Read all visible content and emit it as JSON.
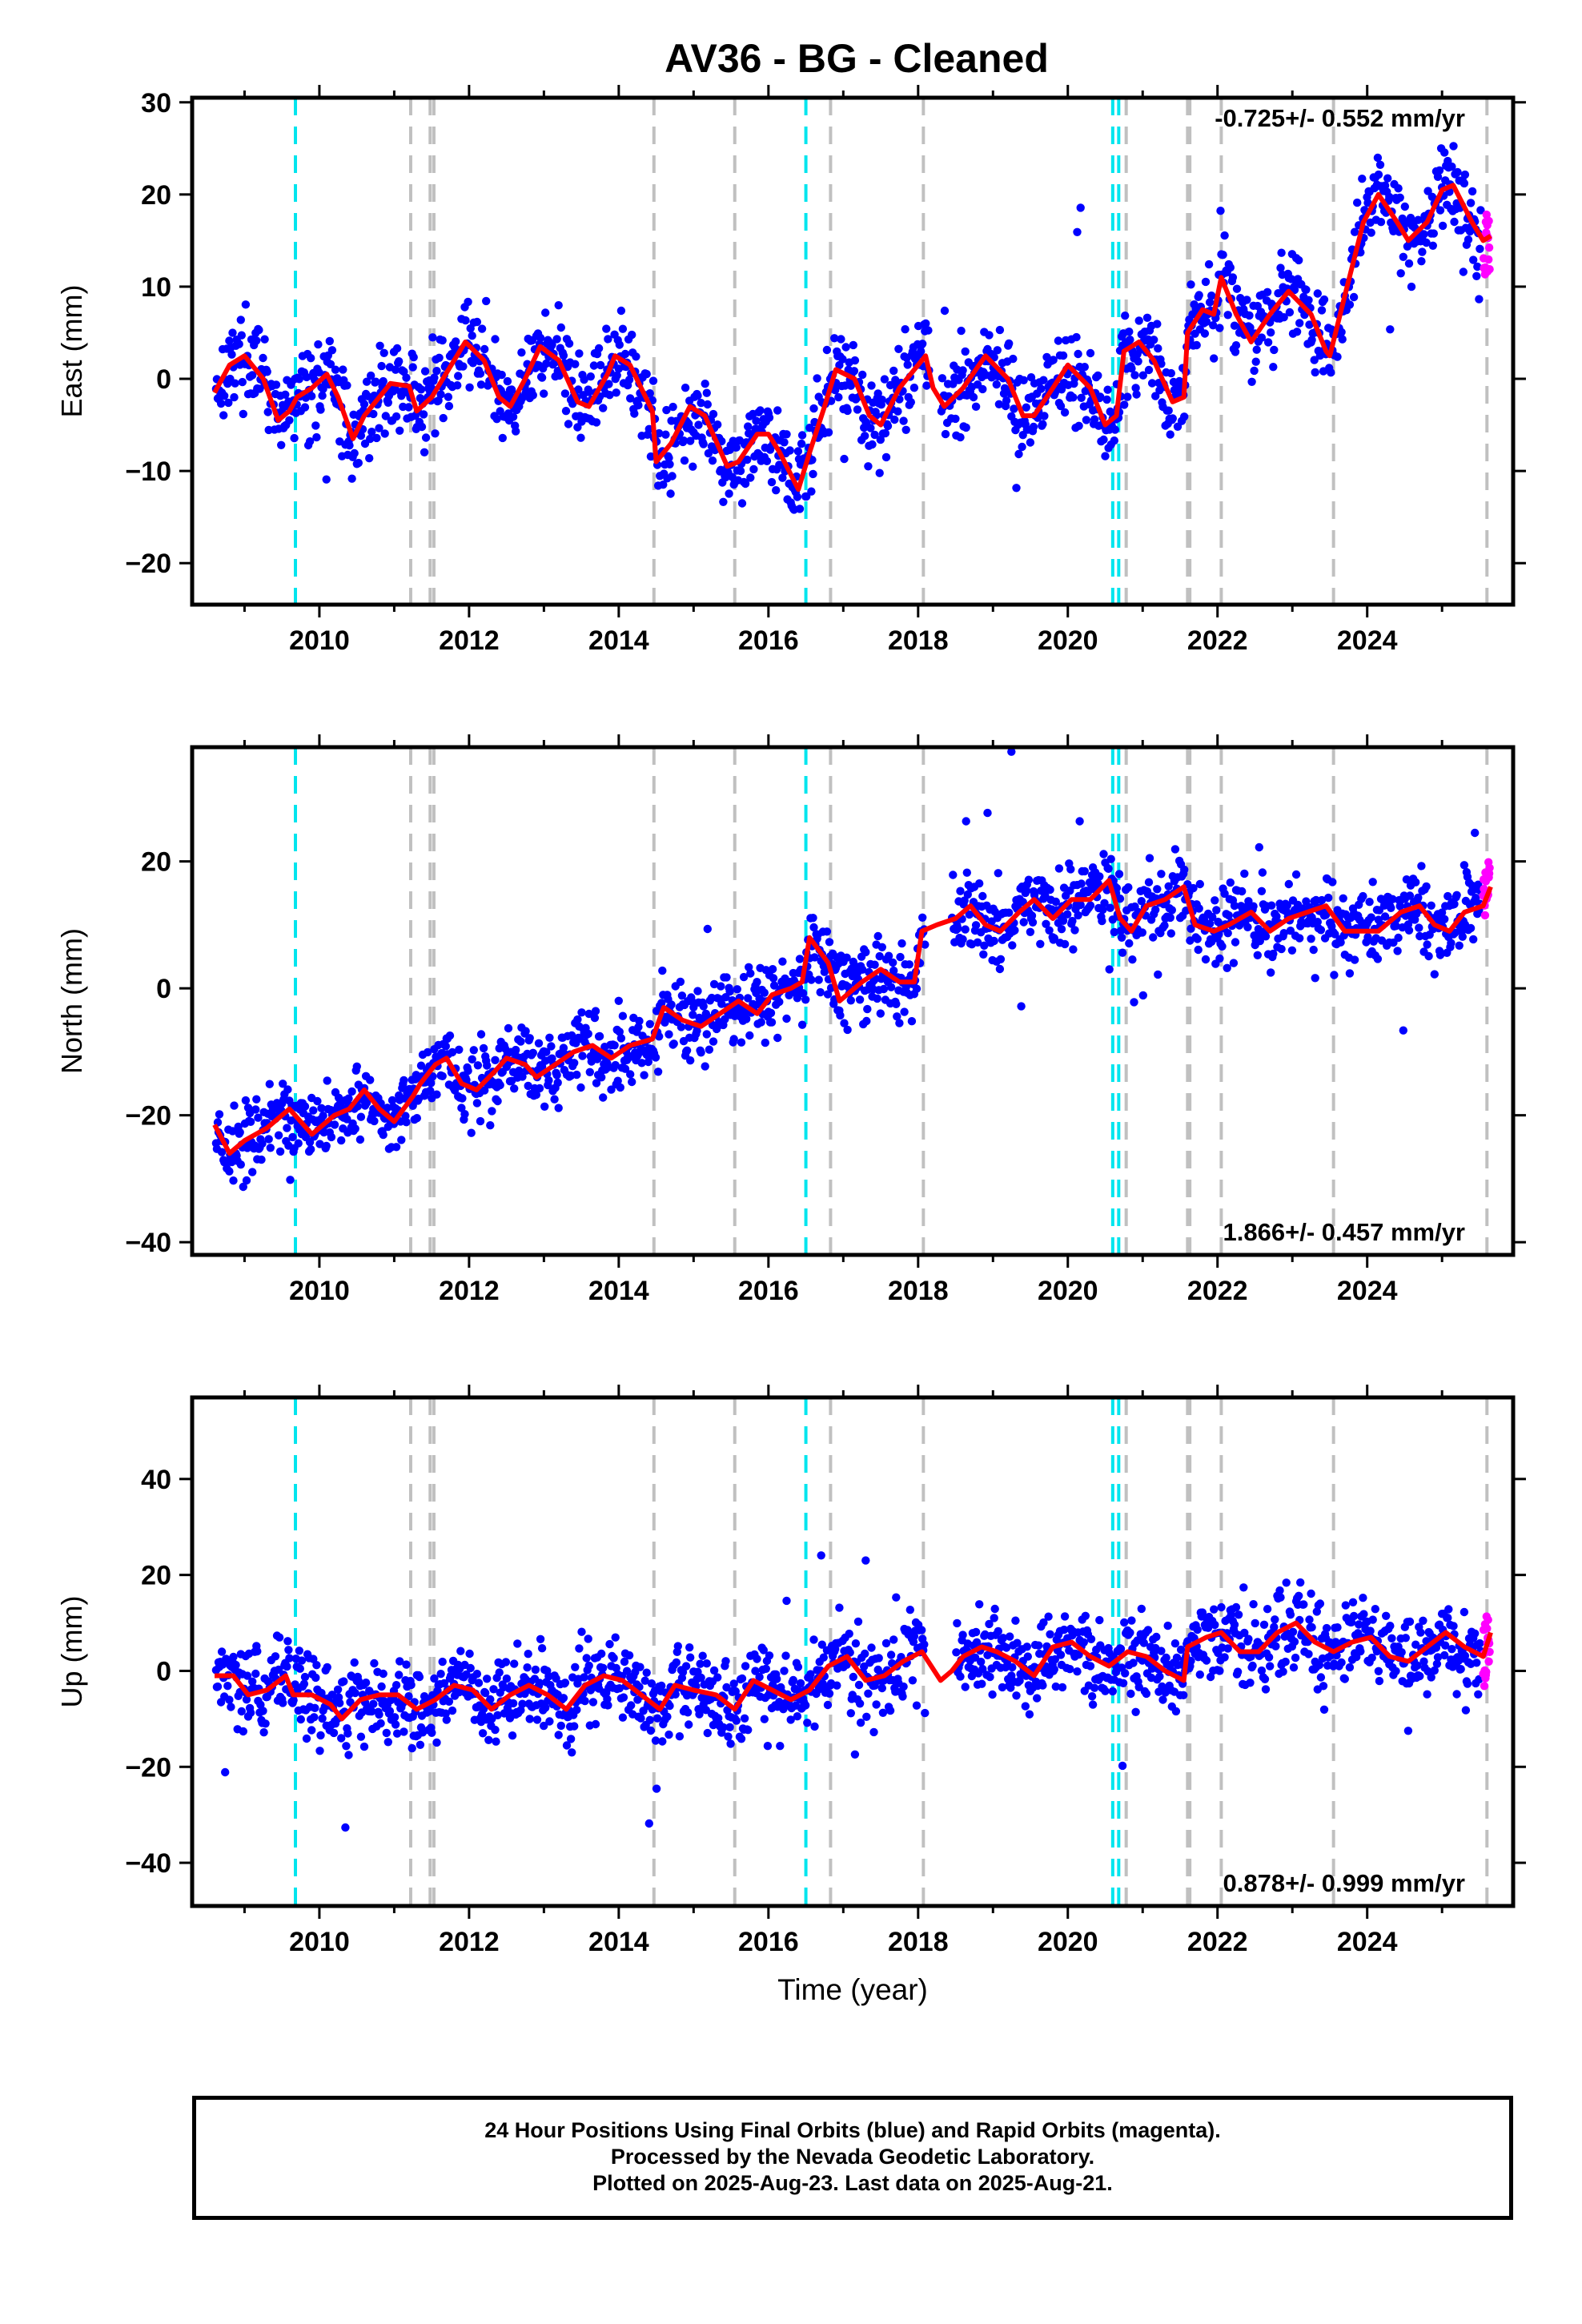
{
  "title": "AV36  - BG - Cleaned",
  "colors": {
    "final_orbits": "#0000ff",
    "rapid_orbits": "#ff00ff",
    "model": "#ff0000",
    "equipment_change": "#00e5ee",
    "earthquake": "#c0c0c0"
  },
  "chart_data": [
    {
      "type": "scatter",
      "id": "east",
      "ylabel": "East (mm)",
      "xlim": [
        2008.3,
        2025.95
      ],
      "ylim": [
        -24.5,
        30.5
      ],
      "yticks": [
        -20,
        -10,
        0,
        10,
        20,
        30
      ],
      "xticks": [
        2010,
        2012,
        2014,
        2016,
        2018,
        2020,
        2022,
        2024
      ],
      "rate_label": "-0.725+/- 0.552 mm/yr",
      "rate_position": "top-right",
      "model_knots": [
        [
          2008.6,
          -1.5
        ],
        [
          2008.8,
          1.5
        ],
        [
          2009.0,
          2.5
        ],
        [
          2009.25,
          0
        ],
        [
          2009.45,
          -4.5
        ],
        [
          2009.6,
          -3.5
        ],
        [
          2009.7,
          -2
        ],
        [
          2009.9,
          -1
        ],
        [
          2010.1,
          0.5
        ],
        [
          2010.25,
          -2
        ],
        [
          2010.45,
          -6.5
        ],
        [
          2010.6,
          -4
        ],
        [
          2010.8,
          -2
        ],
        [
          2010.95,
          -0.5
        ],
        [
          2011.2,
          -0.8
        ],
        [
          2011.3,
          -3.5
        ],
        [
          2011.5,
          -2
        ],
        [
          2011.8,
          2
        ],
        [
          2011.95,
          4
        ],
        [
          2012.2,
          2
        ],
        [
          2012.4,
          -2
        ],
        [
          2012.55,
          -3
        ],
        [
          2012.75,
          0
        ],
        [
          2012.95,
          3.5
        ],
        [
          2013.2,
          2
        ],
        [
          2013.45,
          -2.5
        ],
        [
          2013.6,
          -3
        ],
        [
          2013.85,
          0.5
        ],
        [
          2013.95,
          2.5
        ],
        [
          2014.15,
          1.5
        ],
        [
          2014.45,
          -3.5
        ],
        [
          2014.5,
          -9
        ],
        [
          2014.7,
          -7
        ],
        [
          2014.95,
          -3
        ],
        [
          2015.15,
          -4
        ],
        [
          2015.45,
          -9.5
        ],
        [
          2015.6,
          -9
        ],
        [
          2015.85,
          -6
        ],
        [
          2016.0,
          -6
        ],
        [
          2016.15,
          -8
        ],
        [
          2016.4,
          -12
        ],
        [
          2016.55,
          -8
        ],
        [
          2016.75,
          -3
        ],
        [
          2016.9,
          1
        ],
        [
          2017.15,
          0
        ],
        [
          2017.35,
          -4
        ],
        [
          2017.5,
          -5
        ],
        [
          2017.75,
          -1
        ],
        [
          2017.95,
          1
        ],
        [
          2018.1,
          2.5
        ],
        [
          2018.2,
          -1
        ],
        [
          2018.35,
          -3
        ],
        [
          2018.6,
          -1
        ],
        [
          2018.9,
          2.5
        ],
        [
          2019.2,
          0
        ],
        [
          2019.4,
          -4
        ],
        [
          2019.55,
          -4
        ],
        [
          2019.8,
          -1
        ],
        [
          2020.0,
          1.5
        ],
        [
          2020.3,
          -1
        ],
        [
          2020.5,
          -5
        ],
        [
          2020.65,
          -4
        ],
        [
          2020.75,
          3
        ],
        [
          2020.95,
          4
        ],
        [
          2021.15,
          2
        ],
        [
          2021.4,
          -2.5
        ],
        [
          2021.55,
          -2
        ],
        [
          2021.6,
          5
        ],
        [
          2021.8,
          7.5
        ],
        [
          2021.95,
          7
        ],
        [
          2022.05,
          11
        ],
        [
          2022.25,
          7
        ],
        [
          2022.45,
          4
        ],
        [
          2022.7,
          7
        ],
        [
          2022.95,
          9.5
        ],
        [
          2023.25,
          7
        ],
        [
          2023.45,
          3
        ],
        [
          2023.5,
          2.5
        ],
        [
          2023.7,
          9
        ],
        [
          2023.95,
          17
        ],
        [
          2024.15,
          20
        ],
        [
          2024.4,
          17
        ],
        [
          2024.55,
          15
        ],
        [
          2024.8,
          17
        ],
        [
          2025.0,
          20.5
        ],
        [
          2025.15,
          21
        ],
        [
          2025.4,
          17
        ],
        [
          2025.55,
          15
        ],
        [
          2025.65,
          15.5
        ]
      ],
      "scatter_spread": 3.5
    },
    {
      "type": "scatter",
      "id": "north",
      "ylabel": "North (mm)",
      "xlim": [
        2008.3,
        2025.95
      ],
      "ylim": [
        -42,
        38
      ],
      "yticks": [
        -40,
        -20,
        0,
        20
      ],
      "xticks": [
        2010,
        2012,
        2014,
        2016,
        2018,
        2020,
        2022,
        2024
      ],
      "rate_label": "1.866+/- 0.457 mm/yr",
      "rate_position": "bottom-right",
      "model_knots": [
        [
          2008.6,
          -21.5
        ],
        [
          2008.8,
          -26
        ],
        [
          2009.0,
          -24
        ],
        [
          2009.3,
          -22
        ],
        [
          2009.6,
          -19
        ],
        [
          2009.9,
          -23
        ],
        [
          2010.2,
          -20
        ],
        [
          2010.4,
          -19
        ],
        [
          2010.6,
          -16
        ],
        [
          2010.8,
          -19
        ],
        [
          2011.0,
          -21
        ],
        [
          2011.25,
          -17
        ],
        [
          2011.35,
          -15
        ],
        [
          2011.55,
          -12
        ],
        [
          2011.7,
          -11
        ],
        [
          2011.9,
          -15
        ],
        [
          2012.1,
          -16
        ],
        [
          2012.35,
          -13
        ],
        [
          2012.5,
          -11
        ],
        [
          2012.75,
          -12
        ],
        [
          2012.9,
          -14
        ],
        [
          2013.15,
          -12
        ],
        [
          2013.4,
          -10
        ],
        [
          2013.65,
          -9
        ],
        [
          2013.9,
          -11
        ],
        [
          2014.15,
          -9
        ],
        [
          2014.45,
          -8
        ],
        [
          2014.6,
          -3
        ],
        [
          2014.85,
          -5
        ],
        [
          2015.1,
          -6
        ],
        [
          2015.35,
          -4
        ],
        [
          2015.6,
          -2
        ],
        [
          2015.85,
          -4
        ],
        [
          2016.05,
          -1
        ],
        [
          2016.3,
          0
        ],
        [
          2016.45,
          1
        ],
        [
          2016.55,
          8
        ],
        [
          2016.8,
          4
        ],
        [
          2016.95,
          -2
        ],
        [
          2017.25,
          1
        ],
        [
          2017.5,
          3
        ],
        [
          2017.75,
          1
        ],
        [
          2017.95,
          1
        ],
        [
          2018.05,
          9
        ],
        [
          2018.25,
          10
        ],
        [
          2018.5,
          11
        ],
        [
          2018.7,
          13
        ],
        [
          2018.9,
          10
        ],
        [
          2019.1,
          9
        ],
        [
          2019.35,
          12
        ],
        [
          2019.55,
          14
        ],
        [
          2019.8,
          11
        ],
        [
          2020.05,
          14
        ],
        [
          2020.3,
          14
        ],
        [
          2020.55,
          17
        ],
        [
          2020.7,
          11
        ],
        [
          2020.85,
          9
        ],
        [
          2021.05,
          13
        ],
        [
          2021.3,
          14
        ],
        [
          2021.55,
          16
        ],
        [
          2021.7,
          10
        ],
        [
          2021.95,
          9
        ],
        [
          2022.15,
          10
        ],
        [
          2022.45,
          12
        ],
        [
          2022.7,
          9
        ],
        [
          2022.95,
          11
        ],
        [
          2023.2,
          12
        ],
        [
          2023.45,
          13
        ],
        [
          2023.7,
          9
        ],
        [
          2023.95,
          9
        ],
        [
          2024.15,
          9
        ],
        [
          2024.45,
          12
        ],
        [
          2024.7,
          13
        ],
        [
          2024.9,
          10
        ],
        [
          2025.1,
          9
        ],
        [
          2025.3,
          12
        ],
        [
          2025.55,
          13
        ],
        [
          2025.65,
          16
        ]
      ],
      "scatter_spread": 4.5
    },
    {
      "type": "scatter",
      "id": "up",
      "ylabel": "Up (mm)",
      "xlabel": "Time (year)",
      "xlim": [
        2008.3,
        2025.95
      ],
      "ylim": [
        -49,
        57
      ],
      "yticks": [
        -40,
        -20,
        0,
        20,
        40
      ],
      "xticks": [
        2010,
        2012,
        2014,
        2016,
        2018,
        2020,
        2022,
        2024
      ],
      "rate_label": "0.878+/- 0.999 mm/yr",
      "rate_position": "bottom-right",
      "model_knots": [
        [
          2008.6,
          -1
        ],
        [
          2008.85,
          -1
        ],
        [
          2009.05,
          -5
        ],
        [
          2009.3,
          -4
        ],
        [
          2009.55,
          -1
        ],
        [
          2009.65,
          -5
        ],
        [
          2009.9,
          -5
        ],
        [
          2010.15,
          -7
        ],
        [
          2010.3,
          -10
        ],
        [
          2010.55,
          -6
        ],
        [
          2010.8,
          -5
        ],
        [
          2011.05,
          -5
        ],
        [
          2011.3,
          -8
        ],
        [
          2011.55,
          -6
        ],
        [
          2011.8,
          -3
        ],
        [
          2012.05,
          -4
        ],
        [
          2012.3,
          -8
        ],
        [
          2012.55,
          -5
        ],
        [
          2012.8,
          -3
        ],
        [
          2013.05,
          -5
        ],
        [
          2013.3,
          -8
        ],
        [
          2013.55,
          -3
        ],
        [
          2013.8,
          -1
        ],
        [
          2014.05,
          -2
        ],
        [
          2014.3,
          -5
        ],
        [
          2014.55,
          -8
        ],
        [
          2014.75,
          -3
        ],
        [
          2015.0,
          -4
        ],
        [
          2015.3,
          -5
        ],
        [
          2015.55,
          -8
        ],
        [
          2015.8,
          -2
        ],
        [
          2016.05,
          -4
        ],
        [
          2016.3,
          -6
        ],
        [
          2016.55,
          -4
        ],
        [
          2016.8,
          1
        ],
        [
          2017.05,
          3
        ],
        [
          2017.3,
          -2
        ],
        [
          2017.55,
          -1
        ],
        [
          2017.8,
          2
        ],
        [
          2018.05,
          4
        ],
        [
          2018.3,
          -2
        ],
        [
          2018.45,
          0
        ],
        [
          2018.6,
          3
        ],
        [
          2018.85,
          5
        ],
        [
          2019.05,
          4
        ],
        [
          2019.3,
          2
        ],
        [
          2019.55,
          -1
        ],
        [
          2019.8,
          5
        ],
        [
          2020.05,
          6
        ],
        [
          2020.3,
          3
        ],
        [
          2020.55,
          1
        ],
        [
          2020.8,
          4
        ],
        [
          2021.05,
          3
        ],
        [
          2021.3,
          0
        ],
        [
          2021.55,
          -2
        ],
        [
          2021.6,
          5
        ],
        [
          2021.85,
          7
        ],
        [
          2022.05,
          8
        ],
        [
          2022.3,
          4
        ],
        [
          2022.55,
          4
        ],
        [
          2022.8,
          8
        ],
        [
          2023.05,
          10
        ],
        [
          2023.3,
          6
        ],
        [
          2023.55,
          4
        ],
        [
          2023.8,
          6
        ],
        [
          2024.05,
          7
        ],
        [
          2024.3,
          3
        ],
        [
          2024.55,
          2
        ],
        [
          2024.8,
          5
        ],
        [
          2025.05,
          8
        ],
        [
          2025.3,
          5
        ],
        [
          2025.55,
          3
        ],
        [
          2025.65,
          8
        ]
      ],
      "scatter_spread": 6.5
    }
  ],
  "event_lines": {
    "equipment_change": [
      2009.68,
      2016.5,
      2020.6,
      2020.68
    ],
    "earthquake": [
      2011.22,
      2011.48,
      2011.53,
      2014.47,
      2015.55,
      2016.83,
      2018.07,
      2020.78,
      2021.6,
      2021.63,
      2022.05,
      2023.55,
      2025.6
    ]
  },
  "footer": {
    "line1": "24 Hour Positions Using Final Orbits (blue) and Rapid Orbits (magenta).",
    "line2": "Processed by the Nevada Geodetic Laboratory.",
    "line3": "Plotted on 2025-Aug-23. Last data on 2025-Aug-21."
  }
}
